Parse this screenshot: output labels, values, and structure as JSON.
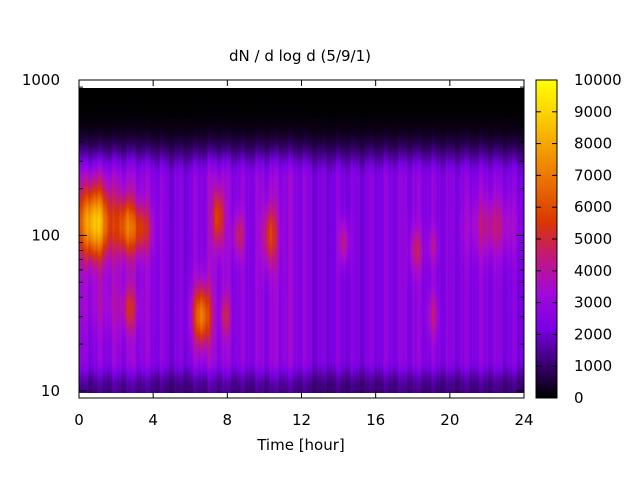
{
  "chart_data": {
    "type": "heatmap",
    "title": "dN / d log d (5/9/1)",
    "xlabel": "Time [hour]",
    "ylabel": "",
    "xlim": [
      0,
      24
    ],
    "ylim": [
      9,
      1000
    ],
    "y_scale": "log",
    "x_ticks": [
      0,
      4,
      8,
      12,
      16,
      20,
      24
    ],
    "x_tick_labels": [
      "0",
      "4",
      "8",
      "12",
      "16",
      "20",
      "24"
    ],
    "y_ticks": [
      10,
      100,
      1000
    ],
    "y_tick_labels": [
      "10",
      "100",
      "1000"
    ],
    "data_x_range": [
      0,
      24
    ],
    "data_y_range": [
      9.5,
      900
    ],
    "colorbar": {
      "min": 0,
      "max": 10000,
      "ticks": [
        0,
        1000,
        2000,
        3000,
        4000,
        5000,
        6000,
        7000,
        8000,
        9000,
        10000
      ],
      "tick_labels": [
        "0",
        "1000",
        "2000",
        "3000",
        "4000",
        "5000",
        "6000",
        "7000",
        "8000",
        "9000",
        "10000"
      ],
      "colormap": [
        "#000000",
        "#3b0075",
        "#7b00e6",
        "#a30ad8",
        "#c2187a",
        "#d93800",
        "#e96a00",
        "#f39c00",
        "#fbd000",
        "#ffff00"
      ]
    },
    "background_level": 2600,
    "time_profile": [
      {
        "x": 0,
        "v": 1.0
      },
      {
        "x": 1,
        "v": 1.05
      },
      {
        "x": 2,
        "v": 1.1
      },
      {
        "x": 3,
        "v": 1.15
      },
      {
        "x": 4,
        "v": 1.05
      },
      {
        "x": 5,
        "v": 0.9
      },
      {
        "x": 6,
        "v": 0.95
      },
      {
        "x": 7,
        "v": 1.15
      },
      {
        "x": 8,
        "v": 1.1
      },
      {
        "x": 9,
        "v": 1.0
      },
      {
        "x": 10,
        "v": 1.1
      },
      {
        "x": 11,
        "v": 1.15
      },
      {
        "x": 12,
        "v": 1.05
      },
      {
        "x": 13,
        "v": 0.85
      },
      {
        "x": 14,
        "v": 0.95
      },
      {
        "x": 15,
        "v": 0.9
      },
      {
        "x": 16,
        "v": 0.95
      },
      {
        "x": 17,
        "v": 1.0
      },
      {
        "x": 18,
        "v": 1.05
      },
      {
        "x": 19,
        "v": 1.0
      },
      {
        "x": 20,
        "v": 0.95
      },
      {
        "x": 21,
        "v": 1.0
      },
      {
        "x": 22,
        "v": 1.0
      },
      {
        "x": 23,
        "v": 0.95
      },
      {
        "x": 24,
        "v": 0.9
      }
    ],
    "peaks": [
      {
        "x": 0.8,
        "d": 120,
        "sx": 0.7,
        "sy": 0.17,
        "v": 6000
      },
      {
        "x": 2.5,
        "d": 115,
        "sx": 0.35,
        "sy": 0.14,
        "v": 3200
      },
      {
        "x": 3.3,
        "d": 110,
        "sx": 0.45,
        "sy": 0.12,
        "v": 2600
      },
      {
        "x": 2.7,
        "d": 33,
        "sx": 0.25,
        "sy": 0.1,
        "v": 1800
      },
      {
        "x": 6.6,
        "d": 30,
        "sx": 0.35,
        "sy": 0.14,
        "v": 4500
      },
      {
        "x": 7.5,
        "d": 130,
        "sx": 0.22,
        "sy": 0.14,
        "v": 3200
      },
      {
        "x": 7.9,
        "d": 30,
        "sx": 0.18,
        "sy": 0.1,
        "v": 1800
      },
      {
        "x": 8.6,
        "d": 100,
        "sx": 0.22,
        "sy": 0.1,
        "v": 2000
      },
      {
        "x": 10.3,
        "d": 100,
        "sx": 0.28,
        "sy": 0.14,
        "v": 2800
      },
      {
        "x": 14.3,
        "d": 90,
        "sx": 0.2,
        "sy": 0.1,
        "v": 1900
      },
      {
        "x": 18.2,
        "d": 80,
        "sx": 0.25,
        "sy": 0.1,
        "v": 1700
      },
      {
        "x": 19.1,
        "d": 30,
        "sx": 0.2,
        "sy": 0.1,
        "v": 1500
      },
      {
        "x": 19.1,
        "d": 85,
        "sx": 0.2,
        "sy": 0.08,
        "v": 1200
      },
      {
        "x": 22.3,
        "d": 115,
        "sx": 0.9,
        "sy": 0.14,
        "v": 1700
      },
      {
        "x": 1.5,
        "d": 35,
        "sx": 1.2,
        "sy": 0.12,
        "v": 700
      }
    ]
  }
}
